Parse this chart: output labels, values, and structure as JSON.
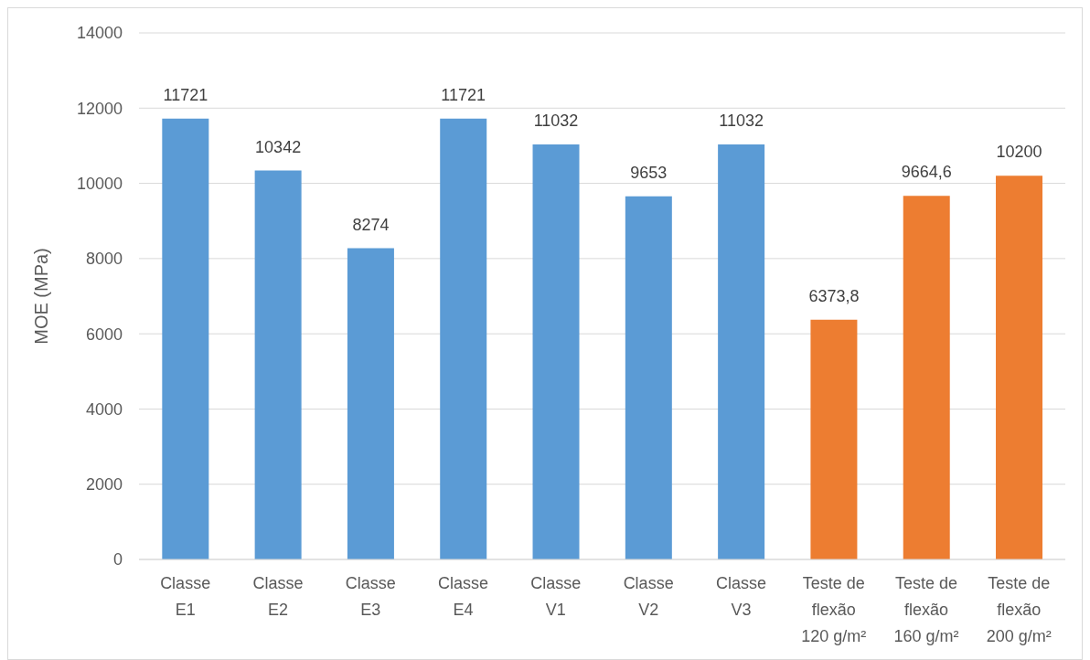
{
  "chart_data": {
    "type": "bar",
    "ylabel": "MOE (MPa)",
    "categories": [
      "Classe E1",
      "Classe E2",
      "Classe E3",
      "Classe E4",
      "Classe V1",
      "Classe V2",
      "Classe V3",
      "Teste de flexão 120 g/m²",
      "Teste de flexão 160 g/m²",
      "Teste de flexão 200 g/m²"
    ],
    "values": [
      11721,
      10342,
      8274,
      11721,
      11032,
      9653,
      11032,
      6373.8,
      9664.6,
      10200
    ],
    "colors": [
      "#5b9bd5",
      "#5b9bd5",
      "#5b9bd5",
      "#5b9bd5",
      "#5b9bd5",
      "#5b9bd5",
      "#5b9bd5",
      "#ed7d31",
      "#ed7d31",
      "#ed7d31"
    ],
    "value_labels": [
      "11721",
      "10342",
      "8274",
      "11721",
      "11032",
      "9653",
      "11032",
      "6373,8",
      "9664,6",
      "10200"
    ],
    "ylim": [
      0,
      14000
    ],
    "yticks": [
      0,
      2000,
      4000,
      6000,
      8000,
      10000,
      12000,
      14000
    ],
    "grid": "y"
  }
}
